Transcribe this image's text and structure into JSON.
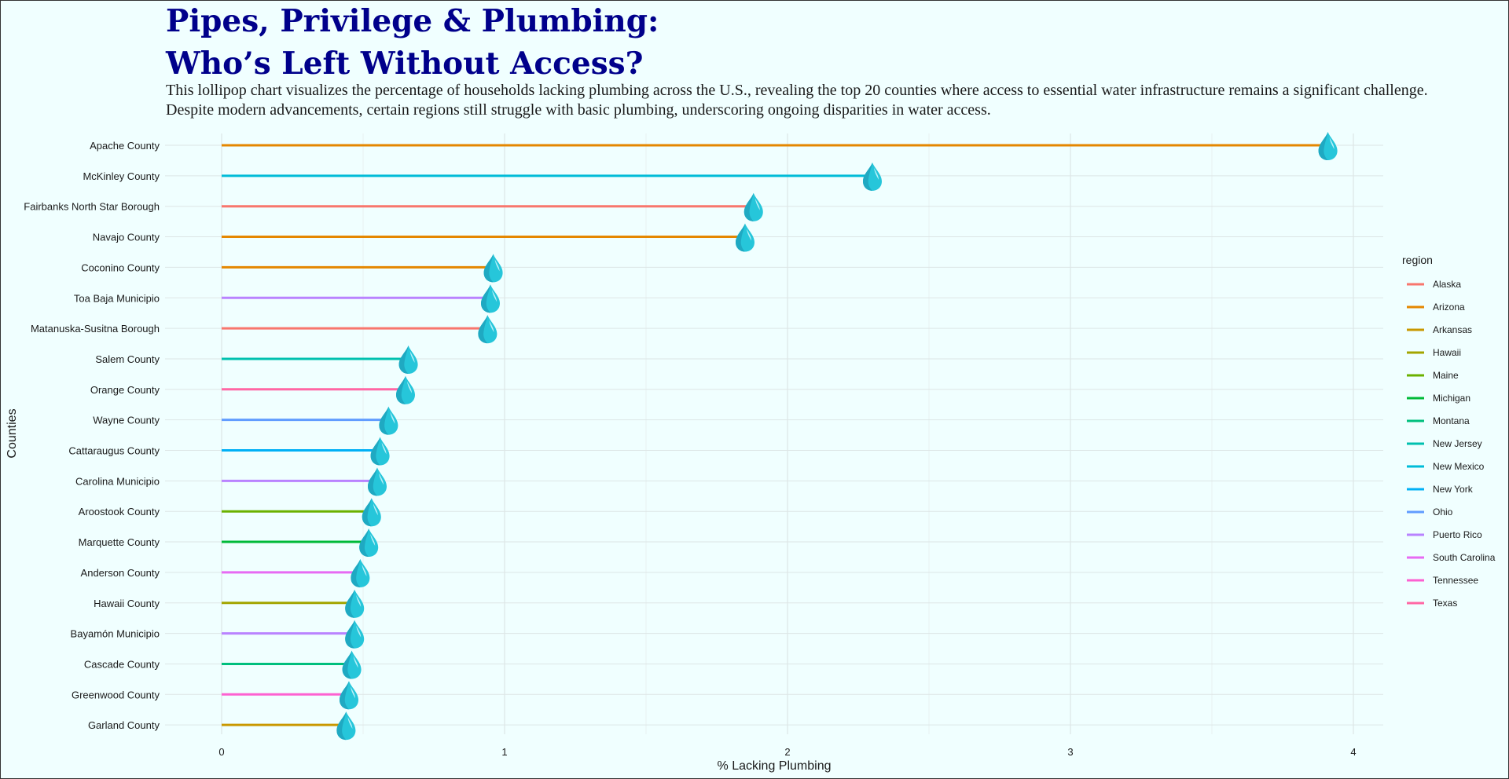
{
  "title_line1": "Pipes, Privilege & Plumbing:",
  "title_line2": "Who’s Left Without Access?",
  "subtitle_line1": "This lollipop chart visualizes the percentage of households lacking plumbing across the U.S., revealing the top 20 counties where access to essential water infrastructure remains a significant challenge.",
  "subtitle_line2": "Despite modern advancements, certain regions still struggle with basic plumbing, underscoring ongoing disparities in water access.",
  "marker_icon": "water-drop-icon",
  "marker_color": "#26c6da",
  "background_color": "#f0ffff",
  "title_color": "#00008b",
  "chart_data": {
    "type": "lollipop",
    "xlabel": "% Lacking Plumbing",
    "ylabel": "Counties",
    "xlim": [
      0,
      4
    ],
    "x_ticks": [
      0,
      1,
      2,
      3,
      4
    ],
    "grid": true,
    "legend_title": "region",
    "legend_position": "right",
    "regions": [
      {
        "name": "Alaska",
        "color": "#f8766d"
      },
      {
        "name": "Arizona",
        "color": "#e58700"
      },
      {
        "name": "Arkansas",
        "color": "#c99800"
      },
      {
        "name": "Hawaii",
        "color": "#a3a500"
      },
      {
        "name": "Maine",
        "color": "#6bb100"
      },
      {
        "name": "Michigan",
        "color": "#00ba38"
      },
      {
        "name": "Montana",
        "color": "#00bf7d"
      },
      {
        "name": "New Jersey",
        "color": "#00c0af"
      },
      {
        "name": "New Mexico",
        "color": "#00bcd8"
      },
      {
        "name": "New York",
        "color": "#00b0f6"
      },
      {
        "name": "Ohio",
        "color": "#619cff"
      },
      {
        "name": "Puerto Rico",
        "color": "#b983ff"
      },
      {
        "name": "South Carolina",
        "color": "#e76bf3"
      },
      {
        "name": "Tennessee",
        "color": "#fd61d1"
      },
      {
        "name": "Texas",
        "color": "#ff67a4"
      }
    ],
    "counties": [
      {
        "name": "Apache County",
        "region": "Arizona",
        "value": 3.91
      },
      {
        "name": "McKinley County",
        "region": "New Mexico",
        "value": 2.3
      },
      {
        "name": "Fairbanks North Star Borough",
        "region": "Alaska",
        "value": 1.88
      },
      {
        "name": "Navajo County",
        "region": "Arizona",
        "value": 1.85
      },
      {
        "name": "Coconino County",
        "region": "Arizona",
        "value": 0.96
      },
      {
        "name": "Toa Baja Municipio",
        "region": "Puerto Rico",
        "value": 0.95
      },
      {
        "name": "Matanuska-Susitna Borough",
        "region": "Alaska",
        "value": 0.94
      },
      {
        "name": "Salem County",
        "region": "New Jersey",
        "value": 0.66
      },
      {
        "name": "Orange County",
        "region": "Texas",
        "value": 0.65
      },
      {
        "name": "Wayne County",
        "region": "Ohio",
        "value": 0.59
      },
      {
        "name": "Cattaraugus County",
        "region": "New York",
        "value": 0.56
      },
      {
        "name": "Carolina Municipio",
        "region": "Puerto Rico",
        "value": 0.55
      },
      {
        "name": "Aroostook County",
        "region": "Maine",
        "value": 0.53
      },
      {
        "name": "Marquette County",
        "region": "Michigan",
        "value": 0.52
      },
      {
        "name": "Anderson County",
        "region": "South Carolina",
        "value": 0.49
      },
      {
        "name": "Hawaii County",
        "region": "Hawaii",
        "value": 0.47
      },
      {
        "name": "Bayamón Municipio",
        "region": "Puerto Rico",
        "value": 0.47
      },
      {
        "name": "Cascade County",
        "region": "Montana",
        "value": 0.46
      },
      {
        "name": "Greenwood County",
        "region": "Tennessee",
        "value": 0.45
      },
      {
        "name": "Garland County",
        "region": "Arkansas",
        "value": 0.44
      }
    ]
  }
}
